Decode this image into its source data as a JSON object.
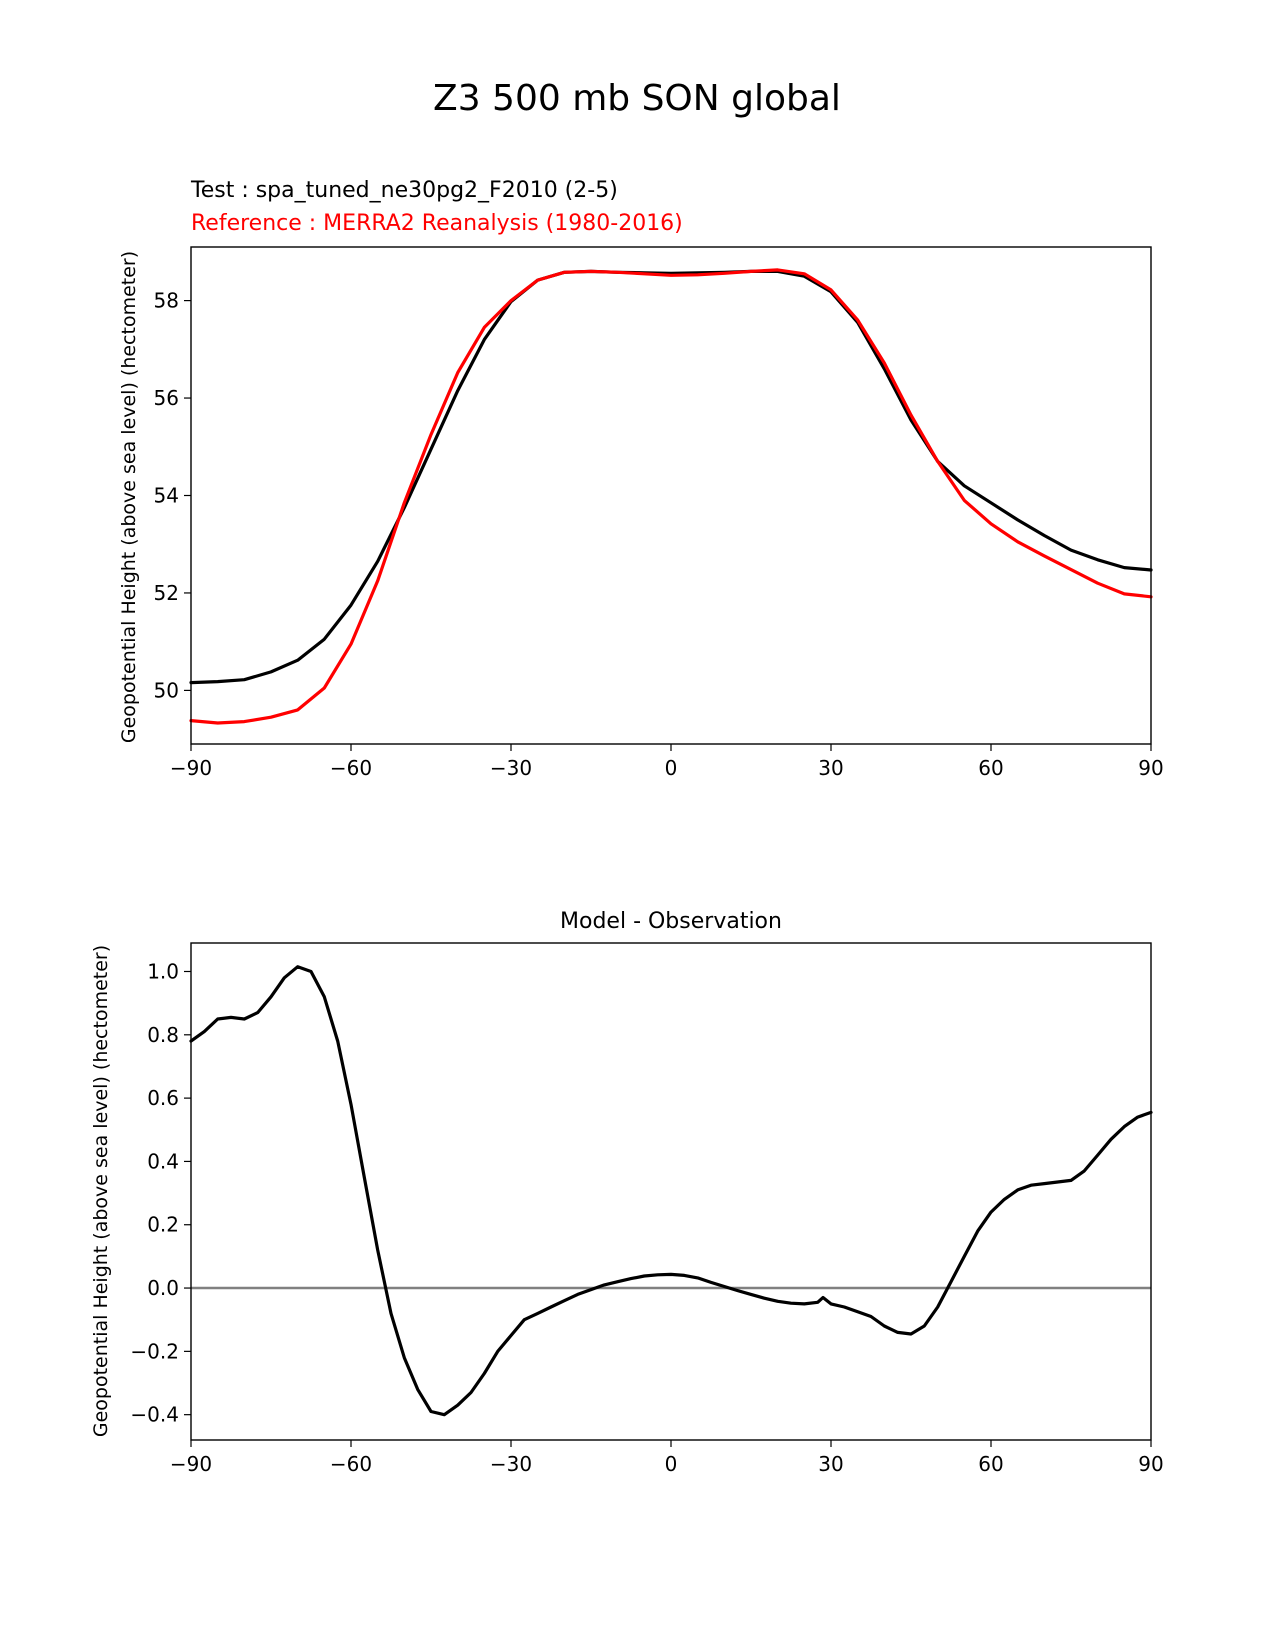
{
  "figure": {
    "title": "Z3 500 mb SON global"
  },
  "chart_data": [
    {
      "type": "line",
      "title_lines": [
        {
          "text": "Test : spa_tuned_ne30pg2_F2010 (2-5)",
          "color": "#000000"
        },
        {
          "text": "Reference : MERRA2 Reanalysis (1980-2016)",
          "color": "#ff0000"
        }
      ],
      "xlabel": "",
      "ylabel": "Geopotential Height (above sea level) (hectometer)",
      "xlim": [
        -90,
        90
      ],
      "ylim": [
        48.9,
        59.1
      ],
      "xticks": [
        -90,
        -60,
        -30,
        0,
        30,
        60,
        90
      ],
      "xtick_labels": [
        "−90",
        "−60",
        "−30",
        "0",
        "30",
        "60",
        "90"
      ],
      "yticks": [
        50,
        52,
        54,
        56,
        58
      ],
      "ytick_labels": [
        "50",
        "52",
        "54",
        "56",
        "58"
      ],
      "grid": false,
      "x": [
        -90,
        -85,
        -80,
        -75,
        -70,
        -65,
        -60,
        -55,
        -50,
        -45,
        -40,
        -35,
        -30,
        -25,
        -20,
        -15,
        -10,
        -5,
        0,
        5,
        10,
        15,
        20,
        25,
        30,
        35,
        40,
        45,
        50,
        55,
        60,
        65,
        70,
        75,
        80,
        85,
        90
      ],
      "series": [
        {
          "color": "#000000",
          "values": [
            50.16,
            50.18,
            50.22,
            50.38,
            50.62,
            51.05,
            51.75,
            52.65,
            53.75,
            54.95,
            56.15,
            57.2,
            57.98,
            58.42,
            58.58,
            58.6,
            58.58,
            58.57,
            58.56,
            58.57,
            58.58,
            58.6,
            58.6,
            58.5,
            58.18,
            57.55,
            56.6,
            55.55,
            54.7,
            54.2,
            53.85,
            53.5,
            53.18,
            52.88,
            52.68,
            52.52,
            52.47
          ]
        },
        {
          "color": "#ff0000",
          "values": [
            49.38,
            49.33,
            49.36,
            49.45,
            49.6,
            50.05,
            50.95,
            52.25,
            53.85,
            55.25,
            56.52,
            57.45,
            58.0,
            58.42,
            58.58,
            58.6,
            58.58,
            58.55,
            58.52,
            58.53,
            58.56,
            58.6,
            58.63,
            58.55,
            58.22,
            57.6,
            56.72,
            55.65,
            54.7,
            53.9,
            53.42,
            53.05,
            52.76,
            52.48,
            52.2,
            51.98,
            51.92
          ]
        }
      ]
    },
    {
      "type": "line",
      "title": "Model - Observation",
      "xlabel": "",
      "ylabel": "Geopotential Height (above sea level) (hectometer)",
      "xlim": [
        -90,
        90
      ],
      "ylim": [
        -0.48,
        1.09
      ],
      "xticks": [
        -90,
        -60,
        -30,
        0,
        30,
        60,
        90
      ],
      "xtick_labels": [
        "−90",
        "−60",
        "−30",
        "0",
        "30",
        "60",
        "90"
      ],
      "yticks": [
        -0.4,
        -0.2,
        0.0,
        0.2,
        0.4,
        0.6,
        0.8,
        1.0
      ],
      "ytick_labels": [
        "−0.4",
        "−0.2",
        "0.0",
        "0.2",
        "0.4",
        "0.6",
        "0.8",
        "1.0"
      ],
      "grid": false,
      "zero_line": {
        "y": 0,
        "color": "#808080"
      },
      "x": [
        -90,
        -87.5,
        -85,
        -82.5,
        -80,
        -77.5,
        -75,
        -72.5,
        -70,
        -67.5,
        -65,
        -62.5,
        -60,
        -57.5,
        -55,
        -52.5,
        -50,
        -47.5,
        -45,
        -42.5,
        -40,
        -37.5,
        -35,
        -32.5,
        -30,
        -27.5,
        -25,
        -22.5,
        -20,
        -17.5,
        -15,
        -12.5,
        -10,
        -7.5,
        -5,
        -2.5,
        0,
        2.5,
        5,
        7.5,
        10,
        12.5,
        15,
        17.5,
        20,
        22.5,
        25,
        27.5,
        28.5,
        30,
        32.5,
        35,
        37.5,
        40,
        42.5,
        45,
        47.5,
        50,
        52.5,
        55,
        57.5,
        60,
        62.5,
        65,
        67.5,
        70,
        72.5,
        75,
        77.5,
        80,
        82.5,
        85,
        87.5,
        90
      ],
      "series": [
        {
          "color": "#000000",
          "values": [
            0.78,
            0.81,
            0.85,
            0.855,
            0.85,
            0.87,
            0.92,
            0.98,
            1.015,
            1.0,
            0.92,
            0.78,
            0.58,
            0.35,
            0.12,
            -0.08,
            -0.22,
            -0.32,
            -0.39,
            -0.4,
            -0.37,
            -0.33,
            -0.27,
            -0.2,
            -0.15,
            -0.1,
            -0.08,
            -0.06,
            -0.04,
            -0.02,
            -0.005,
            0.01,
            0.02,
            0.03,
            0.038,
            0.042,
            0.043,
            0.04,
            0.032,
            0.018,
            0.005,
            -0.008,
            -0.02,
            -0.032,
            -0.042,
            -0.048,
            -0.05,
            -0.045,
            -0.03,
            -0.05,
            -0.06,
            -0.075,
            -0.09,
            -0.12,
            -0.14,
            -0.145,
            -0.12,
            -0.06,
            0.02,
            0.1,
            0.18,
            0.24,
            0.28,
            0.31,
            0.325,
            0.33,
            0.335,
            0.34,
            0.37,
            0.42,
            0.47,
            0.51,
            0.54,
            0.555
          ]
        }
      ]
    }
  ]
}
